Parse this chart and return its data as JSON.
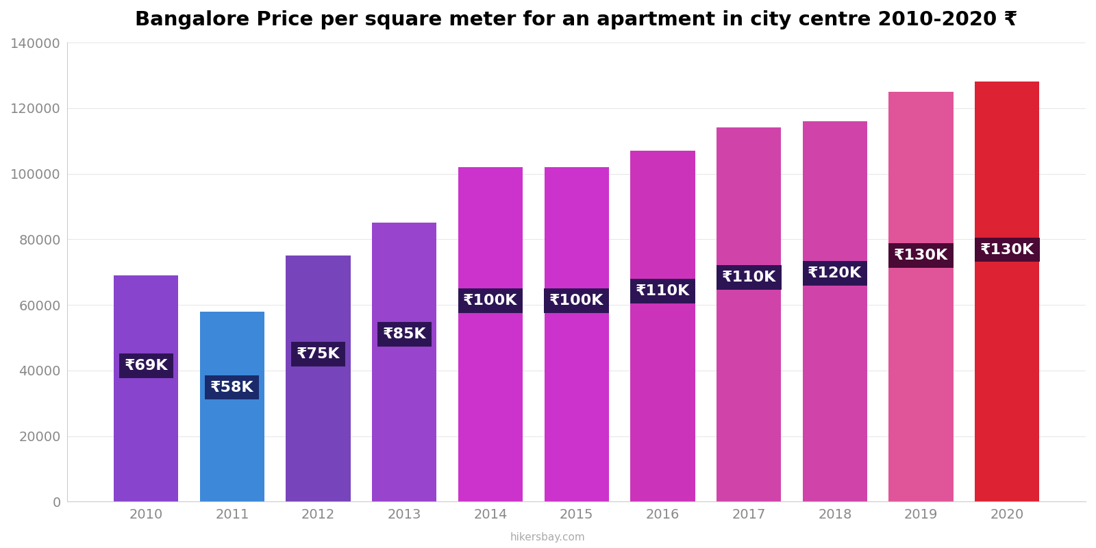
{
  "title": "Bangalore Price per square meter for an apartment in city centre 2010-2020 ₹",
  "years": [
    2010,
    2011,
    2012,
    2013,
    2014,
    2015,
    2016,
    2017,
    2018,
    2019,
    2020
  ],
  "values": [
    69000,
    58000,
    75000,
    85000,
    102000,
    102000,
    107000,
    114000,
    116000,
    125000,
    128000
  ],
  "labels": [
    "₹69K",
    "₹58K",
    "₹75K",
    "₹85K",
    "₹100K",
    "₹100K",
    "₹110K",
    "₹110K",
    "₹120K",
    "₹130K",
    "₹130K"
  ],
  "bar_colors": [
    "#8844CC",
    "#3D88D8",
    "#7744BB",
    "#9944CC",
    "#CC33CC",
    "#CC33CC",
    "#CC33BB",
    "#D044AA",
    "#D044AA",
    "#E05599",
    "#DD2233"
  ],
  "label_bg_colors": [
    "#2D1555",
    "#1A2A6A",
    "#2D1555",
    "#2D1555",
    "#2D1555",
    "#2D1555",
    "#2D1555",
    "#2D1555",
    "#2D1555",
    "#4A0A35",
    "#4A0A35"
  ],
  "ylim": [
    0,
    140000
  ],
  "yticks": [
    0,
    20000,
    40000,
    60000,
    80000,
    100000,
    120000,
    140000
  ],
  "watermark": "hikersbay.com",
  "background_color": "#ffffff",
  "grid_color": "#e8e8e8",
  "title_fontsize": 21,
  "label_fontsize": 16,
  "tick_fontsize": 14
}
